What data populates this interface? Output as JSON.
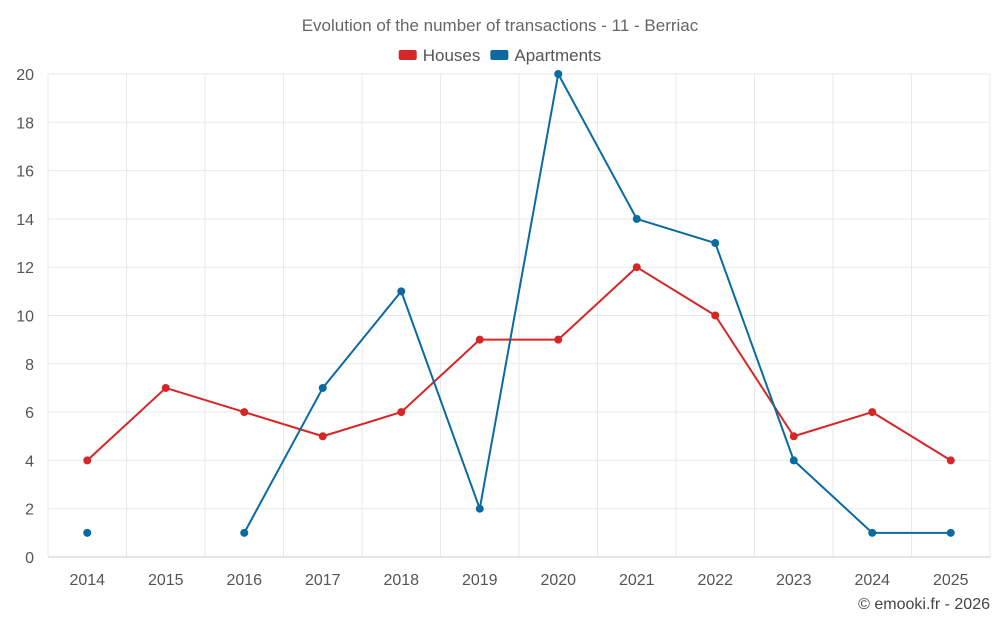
{
  "chart_data": {
    "type": "line",
    "title": "Evolution of the number of transactions - 11 - Berriac",
    "categories": [
      "2014",
      "2015",
      "2016",
      "2017",
      "2018",
      "2019",
      "2020",
      "2021",
      "2022",
      "2023",
      "2024",
      "2025"
    ],
    "ylim": [
      0,
      20
    ],
    "y_ticks": [
      0,
      2,
      4,
      6,
      8,
      10,
      12,
      14,
      16,
      18,
      20
    ],
    "grid": true,
    "legend_position": "top-center",
    "series": [
      {
        "name": "Houses",
        "color": "#d62728",
        "values": [
          4,
          7,
          6,
          5,
          6,
          9,
          9,
          12,
          10,
          5,
          6,
          4
        ]
      },
      {
        "name": "Apartments",
        "color": "#0b6aa0",
        "values": [
          1,
          null,
          1,
          7,
          11,
          2,
          20,
          14,
          13,
          4,
          1,
          1
        ]
      }
    ],
    "xlabel": "",
    "ylabel": ""
  },
  "credit": "© emooki.fr - 2026"
}
